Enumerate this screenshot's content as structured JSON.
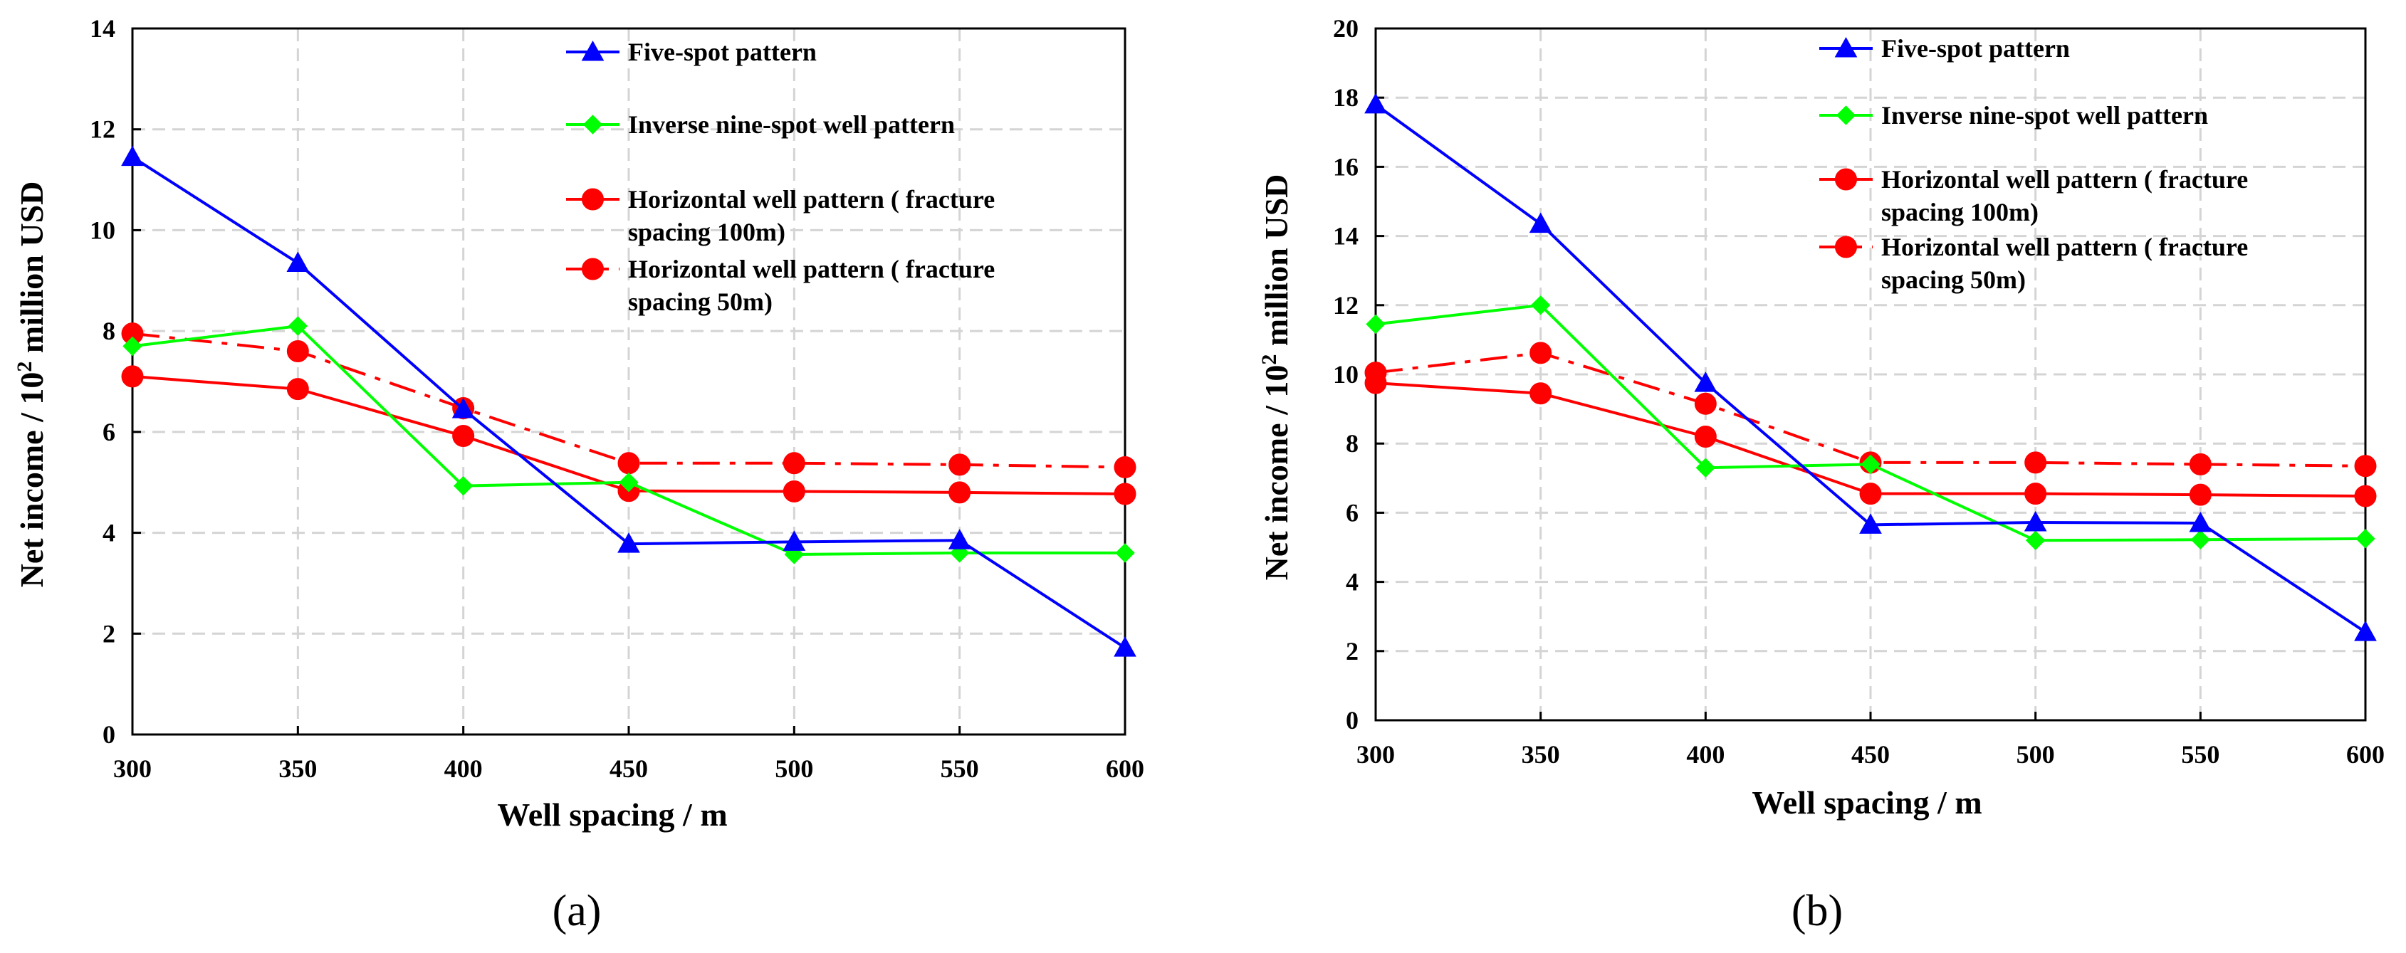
{
  "chart_data": [
    {
      "type": "line",
      "panel_label": "(a)",
      "xlabel": "Well spacing / m",
      "ylabel_prefix": "Net income / 10",
      "ylabel_sup": "2",
      "ylabel_suffix": " million USD",
      "xlim": [
        300,
        600
      ],
      "ylim": [
        0,
        14
      ],
      "xticks": [
        300,
        350,
        400,
        450,
        500,
        550,
        600
      ],
      "yticks": [
        0,
        2,
        4,
        6,
        8,
        10,
        12,
        14
      ],
      "grid": true,
      "legend_position": "top-right",
      "x": [
        300,
        350,
        400,
        450,
        500,
        550,
        600
      ],
      "series": [
        {
          "name": "Five-spot pattern",
          "legend_lines": [
            "Five-spot pattern"
          ],
          "color": "#0000ff",
          "marker": "triangle",
          "dash": "solid",
          "values": [
            11.45,
            9.35,
            6.45,
            3.78,
            3.82,
            3.85,
            1.72
          ]
        },
        {
          "name": "Inverse nine-spot well pattern",
          "legend_lines": [
            "Inverse nine-spot well pattern"
          ],
          "color": "#00ff00",
          "marker": "diamond",
          "dash": "solid",
          "values": [
            7.7,
            8.1,
            4.93,
            5.0,
            3.57,
            3.6,
            3.6
          ]
        },
        {
          "name": "Horizontal well pattern ( fracture spacing 100m)",
          "legend_lines": [
            "Horizontal well pattern ( fracture",
            "spacing 100m)"
          ],
          "color": "#ff0000",
          "marker": "circle",
          "dash": "solid",
          "values": [
            7.1,
            6.85,
            5.92,
            4.83,
            4.82,
            4.8,
            4.77
          ]
        },
        {
          "name": "Horizontal well pattern ( fracture spacing 50m)",
          "legend_lines": [
            "Horizontal well pattern ( fracture",
            "spacing 50m)"
          ],
          "color": "#ff0000",
          "marker": "circle",
          "dash": "dashdot",
          "values": [
            7.95,
            7.6,
            6.47,
            5.38,
            5.38,
            5.35,
            5.3
          ]
        }
      ]
    },
    {
      "type": "line",
      "panel_label": "(b)",
      "xlabel": "Well spacing / m",
      "ylabel_prefix": "Net income / 10",
      "ylabel_sup": "2",
      "ylabel_suffix": " million USD",
      "xlim": [
        300,
        600
      ],
      "ylim": [
        0,
        20
      ],
      "xticks": [
        300,
        350,
        400,
        450,
        500,
        550,
        600
      ],
      "yticks": [
        0,
        2,
        4,
        6,
        8,
        10,
        12,
        14,
        16,
        18,
        20
      ],
      "grid": true,
      "legend_position": "top-right",
      "x": [
        300,
        350,
        400,
        450,
        500,
        550,
        600
      ],
      "series": [
        {
          "name": "Five-spot pattern",
          "legend_lines": [
            "Five-spot pattern"
          ],
          "color": "#0000ff",
          "marker": "triangle",
          "dash": "solid",
          "values": [
            17.8,
            14.35,
            9.75,
            5.65,
            5.72,
            5.7,
            2.55
          ]
        },
        {
          "name": "Inverse nine-spot well pattern",
          "legend_lines": [
            "Inverse nine-spot well pattern"
          ],
          "color": "#00ff00",
          "marker": "diamond",
          "dash": "solid",
          "values": [
            11.45,
            12.0,
            7.3,
            7.4,
            5.2,
            5.22,
            5.25
          ]
        },
        {
          "name": "Horizontal well pattern ( fracture spacing 100m)",
          "legend_lines": [
            "Horizontal well pattern ( fracture",
            "spacing 100m)"
          ],
          "color": "#ff0000",
          "marker": "circle",
          "dash": "solid",
          "values": [
            9.75,
            9.45,
            8.2,
            6.55,
            6.55,
            6.52,
            6.48
          ]
        },
        {
          "name": "Horizontal well pattern ( fracture spacing 50m)",
          "legend_lines": [
            "Horizontal well pattern ( fracture",
            "spacing 50m)"
          ],
          "color": "#ff0000",
          "marker": "circle",
          "dash": "dashdot",
          "values": [
            10.05,
            10.62,
            9.15,
            7.45,
            7.45,
            7.4,
            7.35
          ]
        }
      ]
    }
  ]
}
